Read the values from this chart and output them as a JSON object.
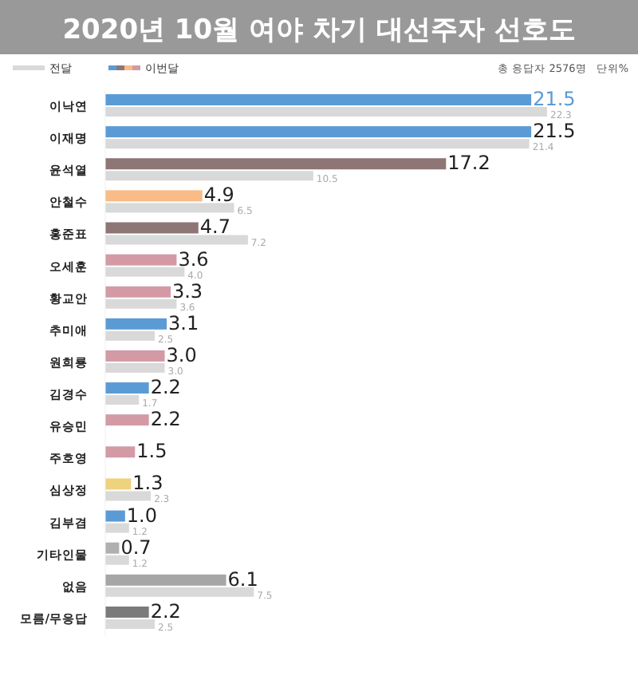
{
  "chart_data": {
    "type": "bar",
    "orientation": "horizontal",
    "title": "2020년 10월 여야 차기 대선주자 선호도",
    "annotations": [
      "총 응답자 2576명",
      "단위%"
    ],
    "categories": [
      "이낙연",
      "이재명",
      "윤석열",
      "안철수",
      "홍준표",
      "오세훈",
      "황교안",
      "추미애",
      "원희룡",
      "김경수",
      "유승민",
      "주호영",
      "심상정",
      "김부겸",
      "기타인물",
      "없음",
      "모름/무응답"
    ],
    "series": [
      {
        "name": "이번달",
        "values": [
          21.5,
          21.5,
          17.2,
          4.9,
          4.7,
          3.6,
          3.3,
          3.1,
          3.0,
          2.2,
          2.2,
          1.5,
          1.3,
          1.0,
          0.7,
          6.1,
          2.2
        ],
        "value_labels": [
          "21.5",
          "21.5",
          "17.2",
          "4.9",
          "4.7",
          "3.6",
          "3.3",
          "3.1",
          "3.0",
          "2.2",
          "2.2",
          "1.5",
          "1.3",
          "1.0",
          "0.7",
          "6.1",
          "2.2"
        ],
        "colors": [
          "#5b9bd5",
          "#5b9bd5",
          "#8e7676",
          "#f9bb88",
          "#8e7676",
          "#d39aa6",
          "#d39aa6",
          "#5b9bd5",
          "#d39aa6",
          "#5b9bd5",
          "#d39aa6",
          "#d39aa6",
          "#eed27e",
          "#5b9bd5",
          "#b0b0b0",
          "#a6a6a6",
          "#7a7a7a"
        ]
      },
      {
        "name": "전달",
        "color": "#d9d9d9",
        "values": [
          22.3,
          21.4,
          10.5,
          6.5,
          7.2,
          4.0,
          3.6,
          2.5,
          3.0,
          1.7,
          null,
          null,
          2.3,
          1.2,
          1.2,
          7.5,
          2.5
        ],
        "value_labels": [
          "22.3",
          "21.4",
          "10.5",
          "6.5",
          "7.2",
          "4.0",
          "3.6",
          "2.5",
          "3.0",
          "1.7",
          null,
          null,
          "2.3",
          "1.2",
          "1.2",
          "7.5",
          "2.5"
        ]
      }
    ],
    "legend": "top left"
  }
}
